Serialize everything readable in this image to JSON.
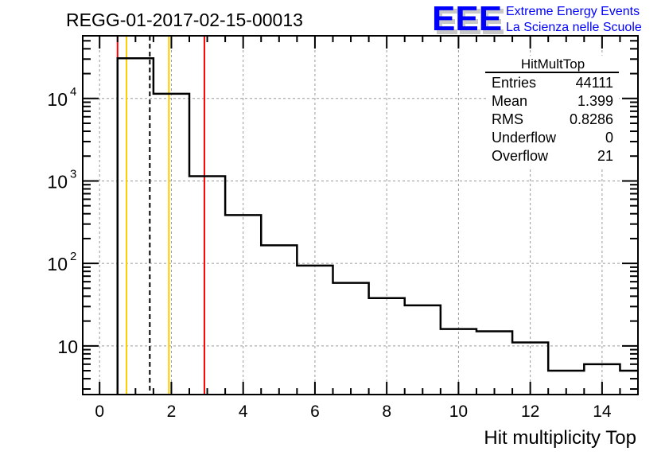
{
  "chart_data": {
    "type": "bar",
    "histogram_style": "step",
    "title": "REGG-01-2017-02-15-00013",
    "xlabel": "Hit multiplicity Top",
    "ylabel": "",
    "xlim": [
      -0.47,
      15.0
    ],
    "ylim": [
      2.57,
      57500
    ],
    "yscale": "log",
    "grid": true,
    "x_ticks": [
      0,
      2,
      4,
      6,
      8,
      10,
      12,
      14
    ],
    "y_ticks": [
      {
        "value": 10000,
        "base": "10",
        "exp": "4"
      },
      {
        "value": 1000,
        "base": "10",
        "exp": "3"
      },
      {
        "value": 100,
        "base": "10",
        "exp": "2"
      },
      {
        "value": 10,
        "base": "10",
        "exp": ""
      }
    ],
    "bin_edges": [
      0.5,
      1.5,
      2.5,
      3.5,
      4.5,
      5.5,
      6.5,
      7.5,
      8.5,
      9.5,
      10.5,
      11.5,
      12.5,
      13.5,
      14.5,
      15.5
    ],
    "values": [
      30700,
      11400,
      1140,
      385,
      166,
      94,
      58,
      38,
      31,
      16,
      15,
      11,
      5,
      6,
      5
    ],
    "vlines": [
      {
        "x": 0.5,
        "color": "#ff0000",
        "style": "solid"
      },
      {
        "x": 2.92,
        "color": "#ff0000",
        "style": "solid"
      },
      {
        "x": 0.75,
        "color": "#ffcc00",
        "style": "solid"
      },
      {
        "x": 1.93,
        "color": "#ffcc00",
        "style": "solid"
      },
      {
        "x": 1.399,
        "color": "#000000",
        "style": "dashed"
      }
    ],
    "stats": {
      "name": "HitMultTop",
      "rows": [
        {
          "label": "Entries",
          "value": "44111"
        },
        {
          "label": "Mean",
          "value": "1.399"
        },
        {
          "label": "RMS",
          "value": "0.8286"
        },
        {
          "label": "Underflow",
          "value": "0"
        },
        {
          "label": "Overflow",
          "value": "21"
        }
      ]
    }
  },
  "logo": {
    "mark": "EEE",
    "line1": "Extreme Energy Events",
    "line2": "La Scienza nelle Scuole",
    "color": "#0000ff"
  }
}
